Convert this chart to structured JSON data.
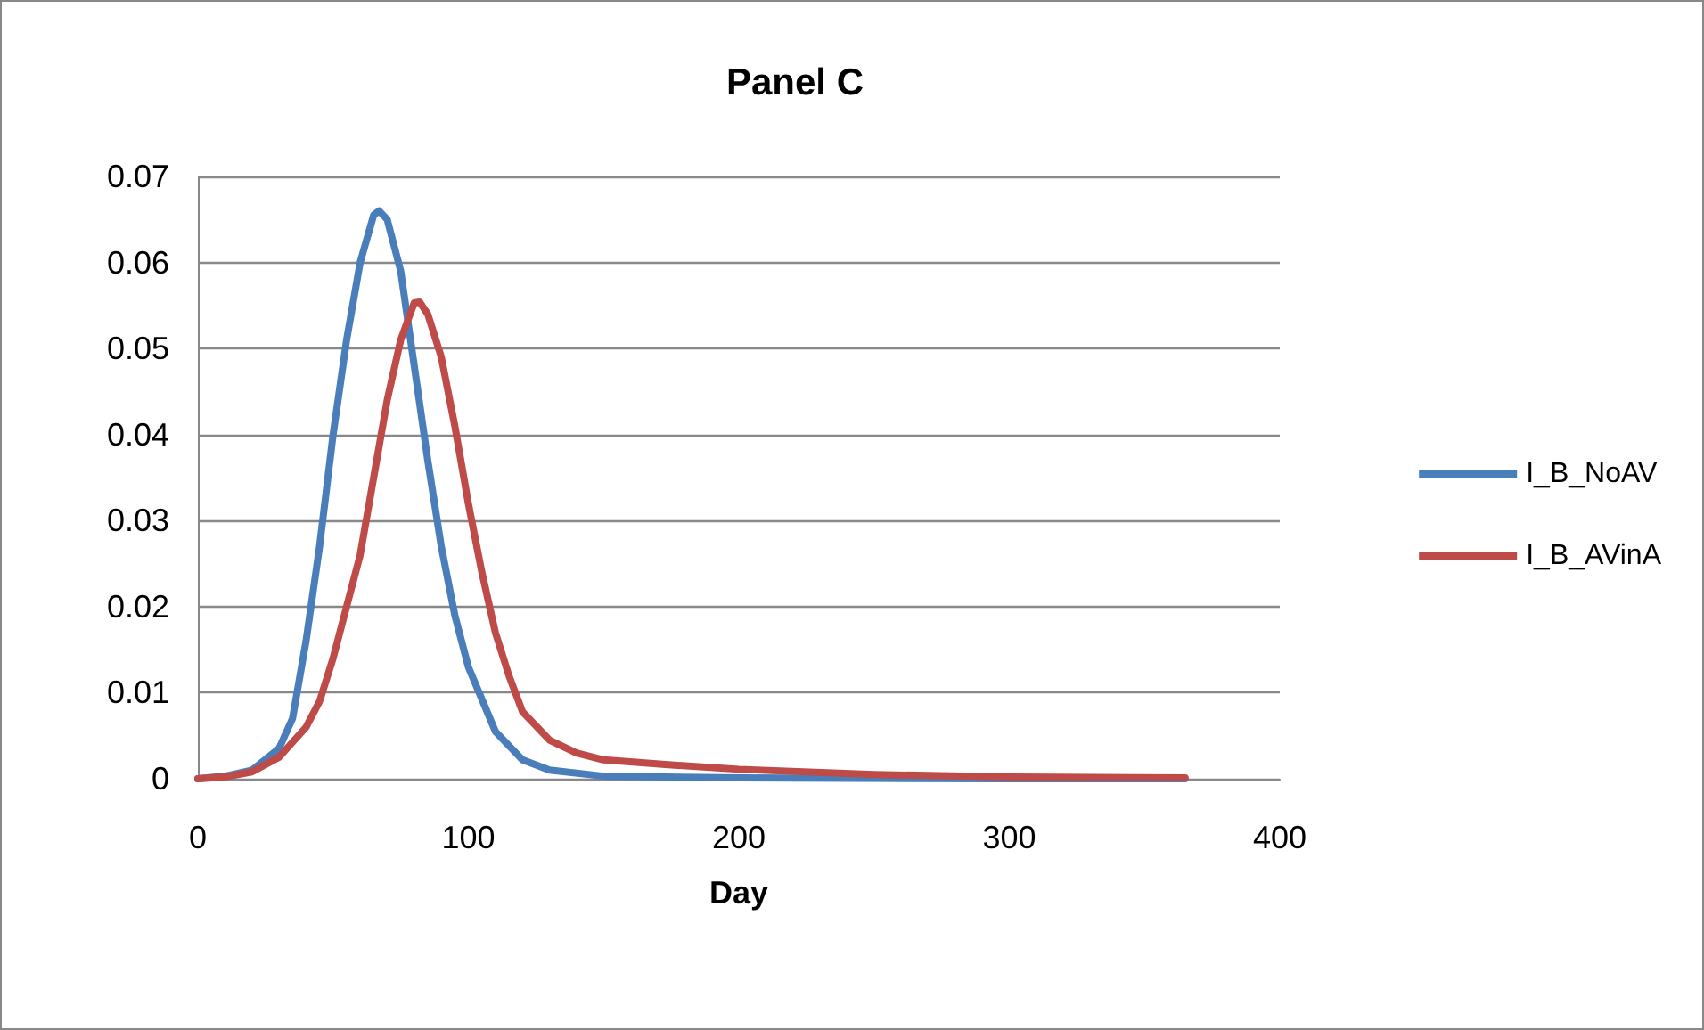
{
  "chart_data": {
    "type": "line",
    "title": "Panel C",
    "xlabel": "Day",
    "xlim": [
      0,
      400
    ],
    "xticks": [
      0,
      100,
      200,
      300,
      400
    ],
    "ylim": [
      0,
      0.07
    ],
    "yticks": [
      0,
      0.01,
      0.02,
      0.03,
      0.04,
      0.05,
      0.06,
      0.07
    ],
    "grid": "y",
    "legend": "right",
    "marker": "none",
    "line_style": "solid",
    "series": [
      {
        "name": "I_B_NoAV",
        "color": "#4a7ebb",
        "x": [
          0,
          10,
          20,
          30,
          35,
          40,
          45,
          50,
          55,
          60,
          65,
          67,
          70,
          75,
          80,
          85,
          90,
          95,
          100,
          110,
          120,
          130,
          150,
          200,
          300,
          365
        ],
        "values": [
          0,
          0.0003,
          0.001,
          0.0035,
          0.007,
          0.016,
          0.027,
          0.04,
          0.051,
          0.06,
          0.0655,
          0.066,
          0.065,
          0.059,
          0.048,
          0.037,
          0.027,
          0.019,
          0.013,
          0.0055,
          0.0022,
          0.001,
          0.0003,
          0.0001,
          0,
          0
        ]
      },
      {
        "name": "I_B_AVinA",
        "color": "#be4b48",
        "x": [
          0,
          10,
          20,
          30,
          40,
          45,
          50,
          55,
          60,
          65,
          70,
          75,
          80,
          82,
          85,
          90,
          95,
          100,
          105,
          110,
          115,
          120,
          130,
          140,
          150,
          175,
          200,
          250,
          300,
          365
        ],
        "values": [
          0,
          0.0002,
          0.0008,
          0.0025,
          0.006,
          0.009,
          0.014,
          0.02,
          0.026,
          0.035,
          0.044,
          0.051,
          0.0553,
          0.0554,
          0.054,
          0.049,
          0.041,
          0.032,
          0.024,
          0.017,
          0.012,
          0.0078,
          0.0045,
          0.003,
          0.0022,
          0.0016,
          0.0011,
          0.0005,
          0.0002,
          0.0001
        ]
      }
    ]
  }
}
